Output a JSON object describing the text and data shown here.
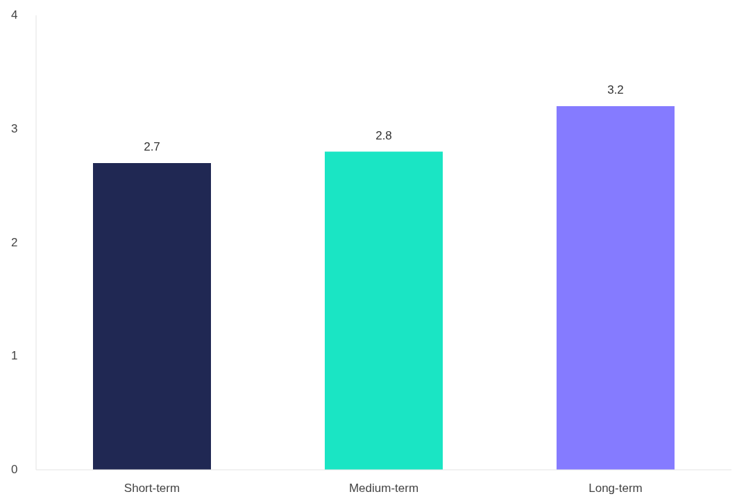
{
  "chart_data": {
    "type": "bar",
    "categories": [
      "Short-term",
      "Medium-term",
      "Long-term"
    ],
    "values": [
      2.7,
      2.8,
      3.2
    ],
    "colors": [
      "#202853",
      "#1ae5c4",
      "#857bff"
    ],
    "ylim": [
      0,
      4
    ],
    "yticks": [
      0,
      1,
      2,
      3,
      4
    ],
    "data_labels": true
  }
}
